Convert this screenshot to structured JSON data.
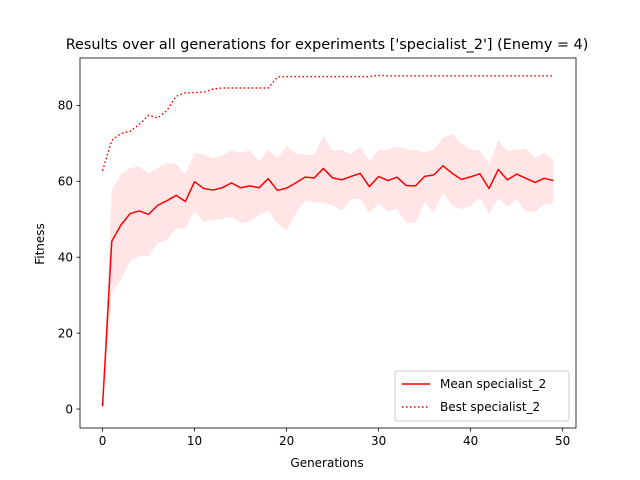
{
  "chart_data": {
    "type": "line",
    "title": "Results over all generations for experiments ['specialist_2'] (Enemy = 4)",
    "xlabel": "Generations",
    "ylabel": "Fitness",
    "xlim": [
      -2.45,
      51.45
    ],
    "ylim": [
      -5,
      92.5
    ],
    "xticks": [
      0,
      10,
      20,
      30,
      40,
      50
    ],
    "yticks": [
      0,
      20,
      40,
      60,
      80
    ],
    "legend_position": "lower-right",
    "colors": {
      "mean": "#ff0000",
      "best": "#ff0000",
      "band": "#ffcccc"
    },
    "x": [
      0,
      1,
      2,
      3,
      4,
      5,
      6,
      7,
      8,
      9,
      10,
      11,
      12,
      13,
      14,
      15,
      16,
      17,
      18,
      19,
      20,
      21,
      22,
      23,
      24,
      25,
      26,
      27,
      28,
      29,
      30,
      31,
      32,
      33,
      34,
      35,
      36,
      37,
      38,
      39,
      40,
      41,
      42,
      43,
      44,
      45,
      46,
      47,
      48,
      49
    ],
    "series": [
      {
        "name": "Mean specialist_2",
        "style": "solid",
        "values": [
          0.7,
          44.2,
          48.5,
          51.5,
          52.2,
          51.3,
          53.7,
          54.9,
          56.3,
          54.7,
          59.9,
          58.1,
          57.7,
          58.3,
          59.6,
          58.3,
          58.8,
          58.3,
          60.7,
          57.6,
          58.2,
          59.6,
          61.1,
          60.9,
          63.4,
          60.9,
          60.4,
          61.3,
          62.1,
          58.6,
          61.3,
          60.2,
          61.1,
          58.9,
          58.8,
          61.3,
          61.7,
          64.1,
          62.1,
          60.5,
          61.2,
          62.0,
          58.1,
          63.1,
          60.4,
          61.9,
          60.8,
          59.7,
          60.8,
          60.2
        ]
      },
      {
        "name": "Best specialist_2",
        "style": "dotted",
        "values": [
          62.8,
          70.8,
          72.6,
          73.2,
          75.0,
          77.4,
          76.7,
          78.7,
          82.4,
          83.3,
          83.4,
          83.5,
          84.3,
          84.6,
          84.6,
          84.6,
          84.6,
          84.6,
          84.6,
          87.5,
          87.6,
          87.6,
          87.6,
          87.6,
          87.6,
          87.6,
          87.6,
          87.6,
          87.6,
          87.6,
          87.9,
          87.8,
          87.8,
          87.8,
          87.8,
          87.8,
          87.8,
          87.8,
          87.8,
          87.8,
          87.8,
          87.8,
          87.8,
          87.8,
          87.8,
          87.8,
          87.8,
          87.8,
          87.8,
          87.8
        ]
      }
    ],
    "band": {
      "upper": [
        0.9,
        57.6,
        62.0,
        63.5,
        63.9,
        62.0,
        63.5,
        64.9,
        64.5,
        61.8,
        67.5,
        67.1,
        66.0,
        66.8,
        68.2,
        67.5,
        68.2,
        65.3,
        68.3,
        66.1,
        69.3,
        67.3,
        67.0,
        67.0,
        72.0,
        68.1,
        68.3,
        67.1,
        69.1,
        65.3,
        68.3,
        68.3,
        69.2,
        68.5,
        68.2,
        67.7,
        68.4,
        71.5,
        72.4,
        70.0,
        68.5,
        68.1,
        64.6,
        70.7,
        67.9,
        68.4,
        68.6,
        66.2,
        67.5,
        65.8
      ],
      "lower": [
        0.5,
        30.6,
        34.1,
        39.1,
        40.3,
        40.4,
        43.7,
        44.5,
        47.6,
        47.6,
        52.1,
        49.4,
        49.8,
        50.1,
        50.6,
        49.0,
        49.4,
        51.0,
        52.3,
        48.9,
        47.0,
        51.5,
        54.9,
        54.5,
        54.4,
        53.7,
        52.3,
        55.2,
        55.4,
        51.6,
        54.2,
        52.0,
        52.7,
        49.0,
        49.1,
        54.5,
        51.8,
        57.0,
        53.6,
        52.6,
        53.5,
        55.8,
        51.4,
        55.6,
        53.3,
        55.2,
        52.0,
        52.0,
        53.9,
        54.2
      ]
    }
  }
}
